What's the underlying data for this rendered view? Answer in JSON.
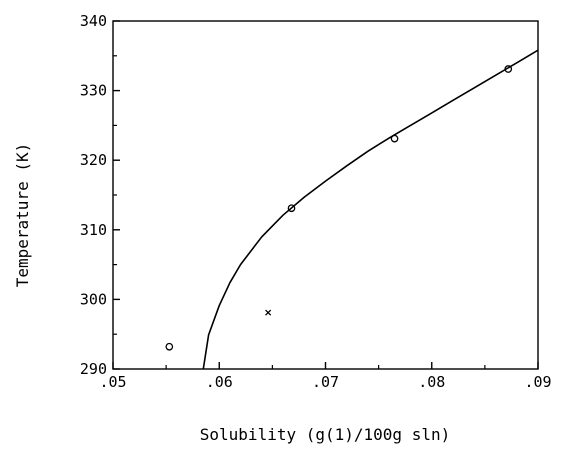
{
  "chart_data": {
    "type": "scatter",
    "title": "",
    "xlabel": "Solubility (g(1)/100g sln)",
    "ylabel": "Temperature (K)",
    "xlim": [
      0.05,
      0.09
    ],
    "ylim": [
      290,
      340
    ],
    "x_ticks": [
      0.05,
      0.06,
      0.07,
      0.08,
      0.09
    ],
    "x_tick_labels": [
      ".05",
      ".06",
      ".07",
      ".08",
      ".09"
    ],
    "y_ticks": [
      290,
      300,
      310,
      320,
      330,
      340
    ],
    "y_tick_labels": [
      "290",
      "300",
      "310",
      "320",
      "330",
      "340"
    ],
    "grid": false,
    "series": [
      {
        "marker": "circle",
        "x": [
          0.0553,
          0.0668,
          0.0765,
          0.0872
        ],
        "y": [
          293.2,
          313.1,
          323.1,
          333.1
        ]
      },
      {
        "marker": "cross",
        "x": [
          0.0646
        ],
        "y": [
          298.1
        ]
      },
      {
        "marker": "line",
        "x": [
          0.0585,
          0.059,
          0.06,
          0.061,
          0.062,
          0.064,
          0.066,
          0.068,
          0.07,
          0.072,
          0.074,
          0.076,
          0.078,
          0.08,
          0.082,
          0.084,
          0.086,
          0.088,
          0.09
        ],
        "y": [
          290.0,
          294.9,
          299.1,
          302.4,
          305.0,
          309.0,
          312.1,
          314.7,
          317.0,
          319.2,
          321.3,
          323.2,
          325.0,
          326.8,
          328.6,
          330.4,
          332.2,
          334.0,
          335.8
        ]
      }
    ]
  }
}
